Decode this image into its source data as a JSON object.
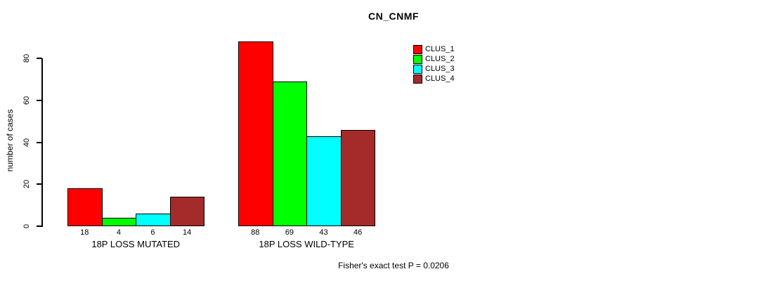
{
  "chart_data": {
    "type": "bar",
    "title": "CN_CNMF",
    "ylabel": "number of cases",
    "xlabel": "",
    "categories": [
      "18P LOSS MUTATED",
      "18P LOSS WILD-TYPE"
    ],
    "series": [
      {
        "name": "CLUS_1",
        "color": "#FF0000",
        "values": [
          18,
          88
        ]
      },
      {
        "name": "CLUS_2",
        "color": "#00FF00",
        "values": [
          4,
          69
        ]
      },
      {
        "name": "CLUS_3",
        "color": "#00FFFF",
        "values": [
          6,
          43
        ]
      },
      {
        "name": "CLUS_4",
        "color": "#A52A2A",
        "values": [
          14,
          46
        ]
      }
    ],
    "yticks": [
      0,
      20,
      40,
      60,
      80
    ],
    "ylim": [
      0,
      88
    ],
    "grid": false,
    "legend_position": "top-right",
    "bar_values_shown": true,
    "annotation": "Fisher's exact test P = 0.0206"
  },
  "colors": {
    "background": "#FFFFFF",
    "axis": "#000000",
    "text": "#000000"
  }
}
